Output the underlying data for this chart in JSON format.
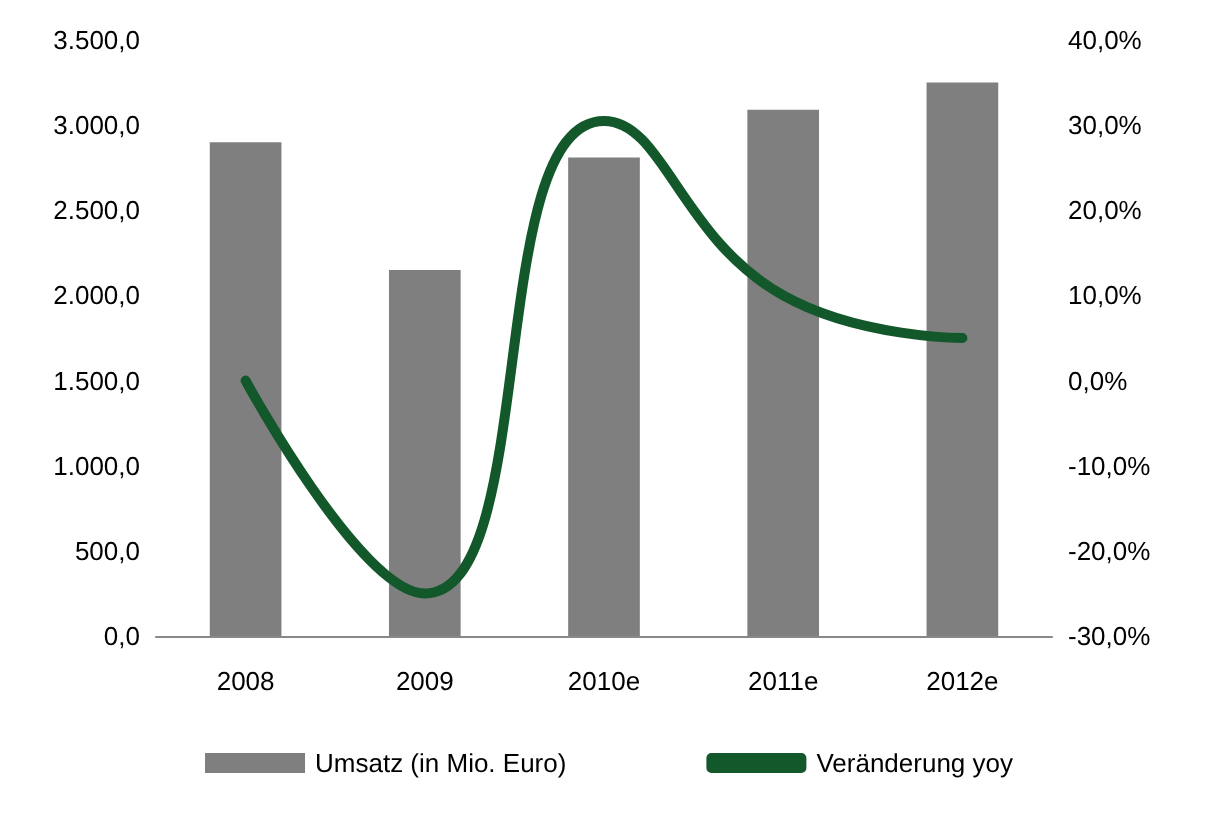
{
  "chart_data": {
    "type": "bar",
    "categories": [
      "2008",
      "2009",
      "2010e",
      "2011e",
      "2012e"
    ],
    "series": [
      {
        "name": "Umsatz (in Mio. Euro)",
        "color": "#7f7f7f",
        "values": [
          2900,
          2150,
          2810,
          3090,
          3250
        ]
      },
      {
        "name": "Veränderung yoy",
        "type": "line",
        "axis": "y2",
        "color": "#13582b",
        "values": [
          0,
          -25,
          30.5,
          10,
          5
        ]
      }
    ],
    "ylim": [
      0,
      3500
    ],
    "yticks": [
      {
        "value": 0,
        "label": "0,0"
      },
      {
        "value": 500,
        "label": "500,0"
      },
      {
        "value": 1000,
        "label": "1.000,0"
      },
      {
        "value": 1500,
        "label": "1.500,0"
      },
      {
        "value": 2000,
        "label": "2.000,0"
      },
      {
        "value": 2500,
        "label": "2.500,0"
      },
      {
        "value": 3000,
        "label": "3.000,0"
      },
      {
        "value": 3500,
        "label": "3.500,0"
      }
    ],
    "y2lim": [
      -30,
      40
    ],
    "y2ticks": [
      {
        "value": -30,
        "label": "-30,0%"
      },
      {
        "value": -20,
        "label": "-20,0%"
      },
      {
        "value": -10,
        "label": "-10,0%"
      },
      {
        "value": 0,
        "label": "0,0%"
      },
      {
        "value": 10,
        "label": "10,0%"
      },
      {
        "value": 20,
        "label": "20,0%"
      },
      {
        "value": 30,
        "label": "30,0%"
      },
      {
        "value": 40,
        "label": "40,0%"
      }
    ],
    "legend": "bottom",
    "grid": false,
    "marker": "none"
  }
}
